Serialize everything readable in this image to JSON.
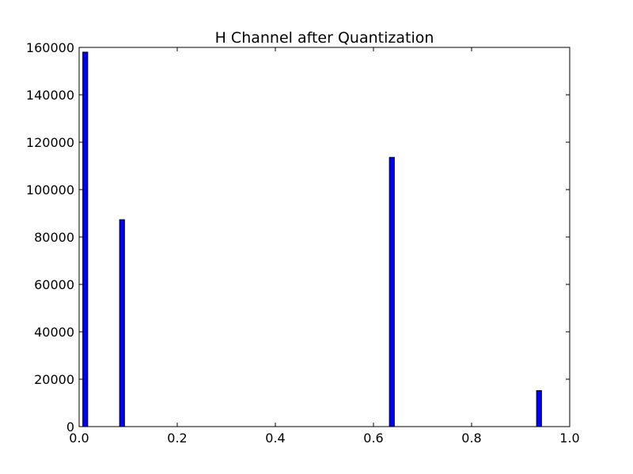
{
  "chart_data": {
    "type": "bar",
    "title": "H Channel after Quantization",
    "xlabel": "",
    "ylabel": "",
    "xlim": [
      0.0,
      1.0
    ],
    "ylim": [
      0,
      160000
    ],
    "grid": false,
    "legend": "none",
    "bar_color": "#0000ff",
    "bar_edge_color": "#000000",
    "bar_width": 0.01,
    "x": [
      0.0125,
      0.0875,
      0.6375,
      0.9375
    ],
    "values": [
      158000,
      87300,
      113600,
      15200
    ],
    "xticks": [
      0.0,
      0.2,
      0.4,
      0.6,
      0.8,
      1.0
    ],
    "xtick_labels": [
      "0.0",
      "0.2",
      "0.4",
      "0.6",
      "0.8",
      "1.0"
    ],
    "yticks": [
      0,
      20000,
      40000,
      60000,
      80000,
      100000,
      120000,
      140000,
      160000
    ],
    "ytick_labels": [
      "0",
      "20000",
      "40000",
      "60000",
      "80000",
      "100000",
      "120000",
      "140000",
      "160000"
    ]
  }
}
